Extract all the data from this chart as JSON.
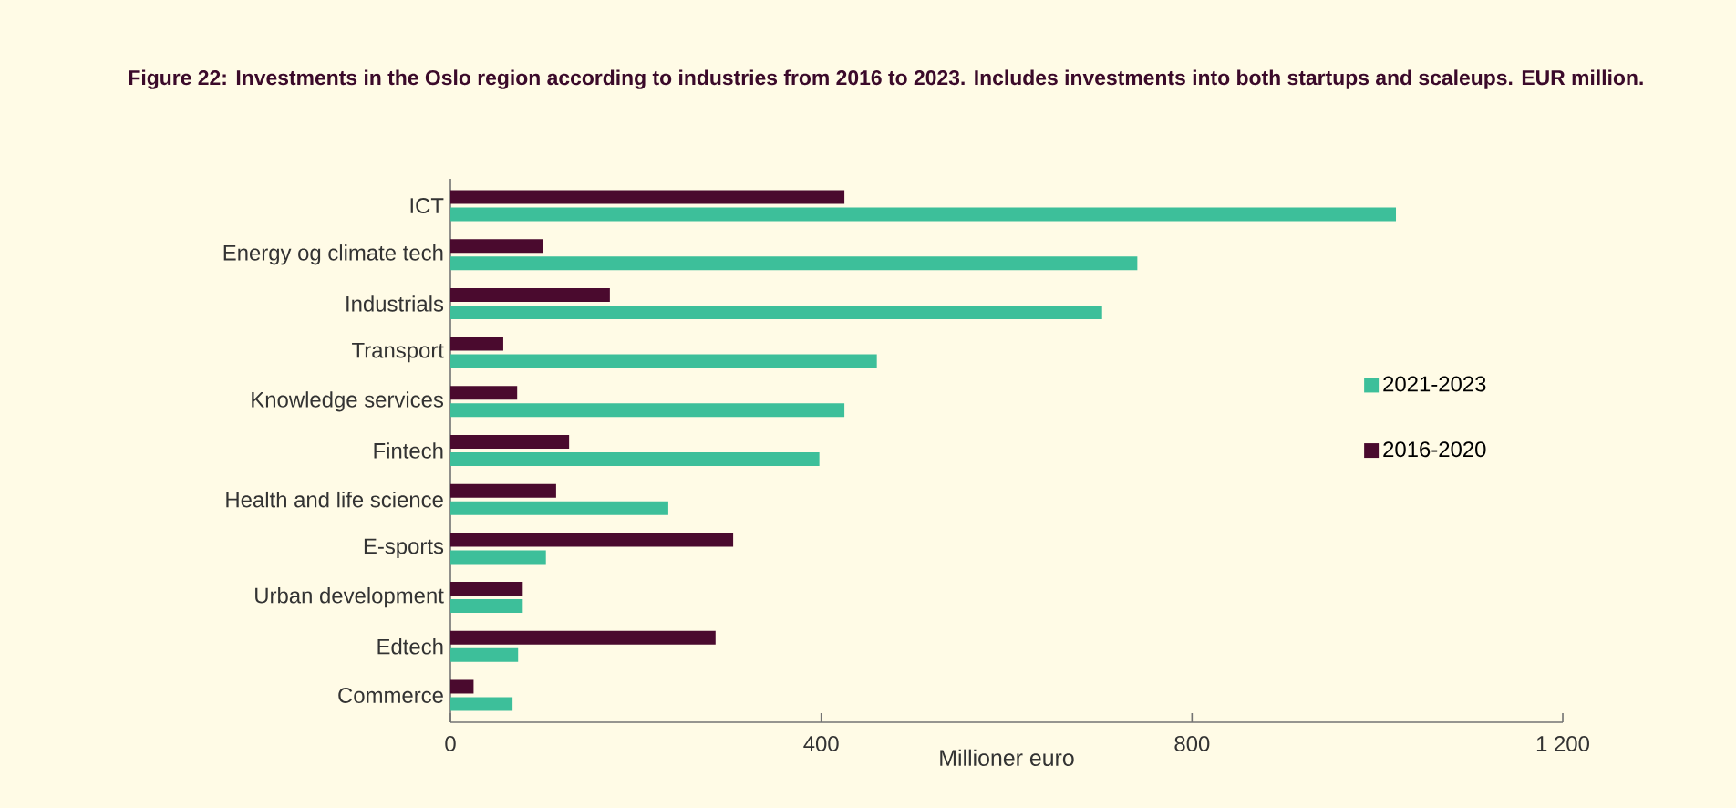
{
  "chart_data": {
    "type": "bar",
    "orientation": "horizontal",
    "title": "Figure 22: Investments in the Oslo region according to industries from 2016 to 2023. Includes investments into both startups and scaleups. EUR million.",
    "xlabel": "Millioner euro",
    "categories": [
      "ICT",
      "Energy og climate tech",
      "Industrials",
      "Transport",
      "Knowledge services",
      "Fintech",
      "Health and life science",
      "E-sports",
      "Urban development",
      "Edtech",
      "Commerce"
    ],
    "series": [
      {
        "name": "2021-2023",
        "color": "#3dbf9a",
        "values": [
          1020,
          741,
          703,
          460,
          425,
          398,
          235,
          103,
          78,
          73,
          67
        ]
      },
      {
        "name": "2016-2020",
        "color": "#4a0a2e",
        "values": [
          425,
          100,
          172,
          57,
          72,
          128,
          114,
          305,
          78,
          286,
          25
        ]
      }
    ],
    "xlim": [
      0,
      1200
    ],
    "xticks": [
      0,
      400,
      800,
      {
        "value": 1200,
        "label": "1 200"
      }
    ],
    "legend": "right"
  }
}
